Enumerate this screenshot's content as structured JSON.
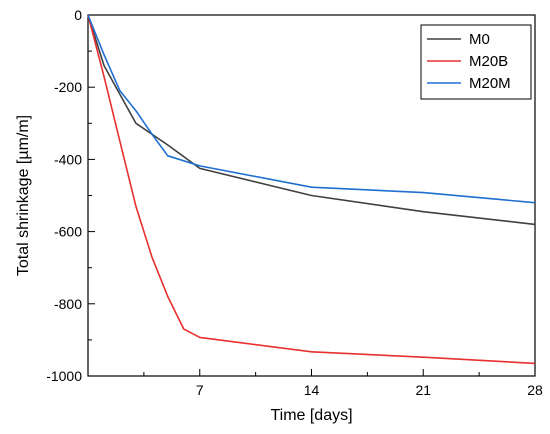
{
  "chart_data": {
    "type": "line",
    "title": "",
    "xlabel": "Time [days]",
    "ylabel": "Total shrinkage [µm/m]",
    "xlim": [
      0,
      28
    ],
    "ylim": [
      -1000,
      0
    ],
    "xticks": [
      7,
      14,
      21,
      28
    ],
    "yticks": [
      0,
      -200,
      -400,
      -600,
      -800,
      -1000
    ],
    "grid": false,
    "legend_position": "top-right",
    "series": [
      {
        "name": "M0",
        "color": "#404040",
        "x": [
          0,
          1,
          3,
          5,
          7,
          14,
          21,
          28
        ],
        "y": [
          0,
          -140,
          -300,
          -360,
          -425,
          -500,
          -545,
          -580
        ]
      },
      {
        "name": "M20B",
        "color": "#e8302f",
        "x": [
          0,
          1,
          2,
          3,
          4,
          5,
          6,
          7,
          14,
          21,
          28
        ],
        "y": [
          0,
          -170,
          -350,
          -530,
          -670,
          -780,
          -870,
          -893,
          -933,
          -948,
          -965
        ]
      },
      {
        "name": "M20M",
        "color": "#1f6fd1",
        "x": [
          0,
          1,
          2,
          3,
          4,
          5,
          7,
          14,
          21,
          28
        ],
        "y": [
          0,
          -110,
          -210,
          -265,
          -330,
          -390,
          -418,
          -477,
          -492,
          -520
        ]
      }
    ]
  }
}
